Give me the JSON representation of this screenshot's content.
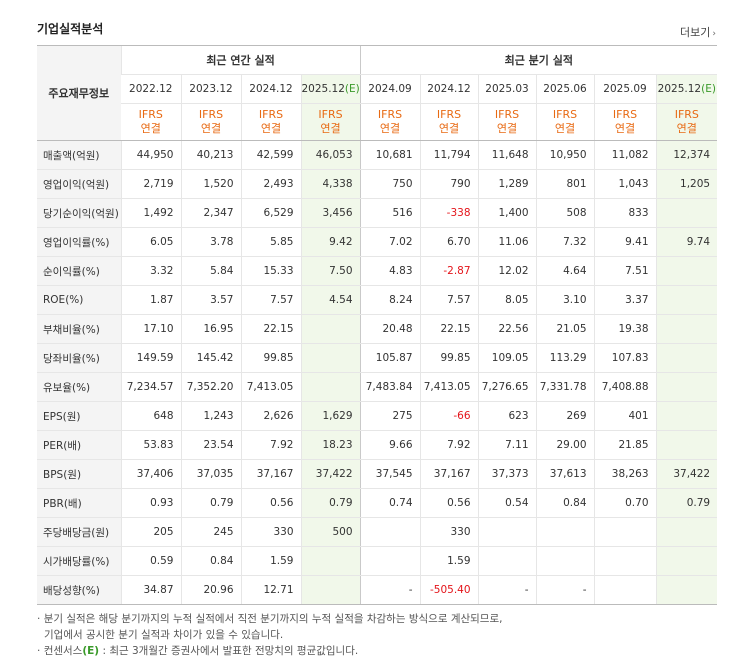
{
  "title": "기업실적분석",
  "more_label": "더보기",
  "label_header": "주요재무정보",
  "groups": {
    "annual": "최근 연간 실적",
    "quarter": "최근 분기 실적"
  },
  "periods": [
    {
      "label": "2022.12",
      "est": false
    },
    {
      "label": "2023.12",
      "est": false
    },
    {
      "label": "2024.12",
      "est": false
    },
    {
      "label": "2025.12",
      "est": true
    },
    {
      "label": "2024.09",
      "est": false
    },
    {
      "label": "2024.12",
      "est": false
    },
    {
      "label": "2025.03",
      "est": false
    },
    {
      "label": "2025.06",
      "est": false
    },
    {
      "label": "2025.09",
      "est": false
    },
    {
      "label": "2025.12",
      "est": true
    }
  ],
  "est_mark": "(E)",
  "std_line1": "IFRS",
  "std_line2": "연결",
  "rows": [
    {
      "label": "매출액(억원)",
      "values": [
        "44,950",
        "40,213",
        "42,599",
        "46,053",
        "10,681",
        "11,794",
        "11,648",
        "10,950",
        "11,082",
        "12,374"
      ],
      "group_start": true
    },
    {
      "label": "영업이익(억원)",
      "values": [
        "2,719",
        "1,520",
        "2,493",
        "4,338",
        "750",
        "790",
        "1,289",
        "801",
        "1,043",
        "1,205"
      ]
    },
    {
      "label": "당기순이익(억원)",
      "values": [
        "1,492",
        "2,347",
        "6,529",
        "3,456",
        "516",
        "-338",
        "1,400",
        "508",
        "833",
        ""
      ]
    },
    {
      "label": "영업이익률(%)",
      "values": [
        "6.05",
        "3.78",
        "5.85",
        "9.42",
        "7.02",
        "6.70",
        "11.06",
        "7.32",
        "9.41",
        "9.74"
      ],
      "group_start": true
    },
    {
      "label": "순이익률(%)",
      "values": [
        "3.32",
        "5.84",
        "15.33",
        "7.50",
        "4.83",
        "-2.87",
        "12.02",
        "4.64",
        "7.51",
        ""
      ]
    },
    {
      "label": "ROE(%)",
      "values": [
        "1.87",
        "3.57",
        "7.57",
        "4.54",
        "8.24",
        "7.57",
        "8.05",
        "3.10",
        "3.37",
        ""
      ]
    },
    {
      "label": "부채비율(%)",
      "values": [
        "17.10",
        "16.95",
        "22.15",
        "",
        "20.48",
        "22.15",
        "22.56",
        "21.05",
        "19.38",
        ""
      ],
      "group_start": true
    },
    {
      "label": "당좌비율(%)",
      "values": [
        "149.59",
        "145.42",
        "99.85",
        "",
        "105.87",
        "99.85",
        "109.05",
        "113.29",
        "107.83",
        ""
      ]
    },
    {
      "label": "유보율(%)",
      "values": [
        "7,234.57",
        "7,352.20",
        "7,413.05",
        "",
        "7,483.84",
        "7,413.05",
        "7,276.65",
        "7,331.78",
        "7,408.88",
        ""
      ]
    },
    {
      "label": "EPS(원)",
      "values": [
        "648",
        "1,243",
        "2,626",
        "1,629",
        "275",
        "-66",
        "623",
        "269",
        "401",
        ""
      ],
      "group_start": true
    },
    {
      "label": "PER(배)",
      "values": [
        "53.83",
        "23.54",
        "7.92",
        "18.23",
        "9.66",
        "7.92",
        "7.11",
        "29.00",
        "21.85",
        ""
      ]
    },
    {
      "label": "BPS(원)",
      "values": [
        "37,406",
        "37,035",
        "37,167",
        "37,422",
        "37,545",
        "37,167",
        "37,373",
        "37,613",
        "38,263",
        "37,422"
      ]
    },
    {
      "label": "PBR(배)",
      "values": [
        "0.93",
        "0.79",
        "0.56",
        "0.79",
        "0.74",
        "0.56",
        "0.54",
        "0.84",
        "0.70",
        "0.79"
      ]
    },
    {
      "label": "주당배당금(원)",
      "values": [
        "205",
        "245",
        "330",
        "500",
        "",
        "330",
        "",
        "",
        "",
        ""
      ],
      "group_start": true
    },
    {
      "label": "시가배당률(%)",
      "values": [
        "0.59",
        "0.84",
        "1.59",
        "",
        "",
        "1.59",
        "",
        "",
        "",
        ""
      ]
    },
    {
      "label": "배당성향(%)",
      "values": [
        "34.87",
        "20.96",
        "12.71",
        "",
        "-",
        "-505.40",
        "-",
        "-",
        "",
        ""
      ]
    }
  ],
  "notes": {
    "line1": "분기 실적은 해당 분기까지의 누적 실적에서 직전 분기까지의 누적 실적을 차감하는 방식으로 계산되므로,",
    "line2": "기업에서 공시한 분기 실적과 차이가 있을 수 있습니다.",
    "line3_prefix": "컨센서스",
    "line3_mark": "(E)",
    "line3_suffix": ": 최근 3개월간 증권사에서 발표한 전망치의 평균값입니다."
  }
}
